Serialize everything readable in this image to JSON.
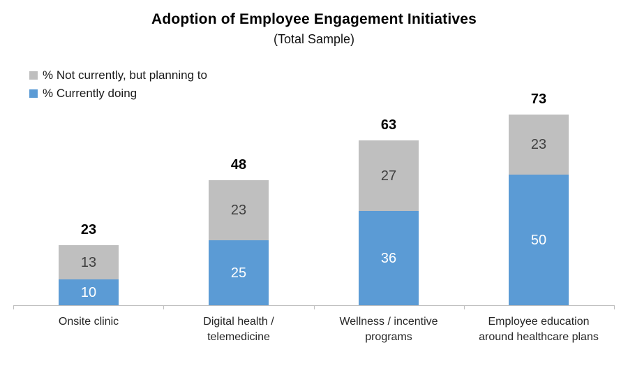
{
  "title": "Adoption of Employee Engagement Initiatives",
  "subtitle": "(Total Sample)",
  "legend": [
    {
      "label": "% Not currently, but planning to",
      "color": "#BFBFBF"
    },
    {
      "label": "% Currently doing",
      "color": "#5B9BD5"
    }
  ],
  "colors": {
    "blue": "#5B9BD5",
    "gray": "#BFBFBF",
    "axis": "#BFBFBF",
    "segment_label_on_blue": "#FFFFFF",
    "segment_label_on_gray": "#404040"
  },
  "chart_data": {
    "type": "bar",
    "stacked": true,
    "title": "Adoption of Employee Engagement Initiatives",
    "subtitle": "(Total Sample)",
    "categories": [
      "Onsite clinic",
      "Digital health / telemedicine",
      "Wellness / incentive programs",
      "Employee education around healthcare plans"
    ],
    "category_label_lines": [
      [
        "Onsite clinic"
      ],
      [
        "Digital health /",
        "telemedicine"
      ],
      [
        "Wellness / incentive",
        "programs"
      ],
      [
        "Employee education",
        "around healthcare plans"
      ]
    ],
    "series": [
      {
        "name": "% Currently doing",
        "color": "#5B9BD5",
        "label_color": "#FFFFFF",
        "values": [
          10,
          25,
          36,
          50
        ]
      },
      {
        "name": "% Not currently, but planning to",
        "color": "#BFBFBF",
        "label_color": "#404040",
        "values": [
          13,
          23,
          27,
          23
        ]
      }
    ],
    "totals": [
      23,
      48,
      63,
      73
    ],
    "ylim": [
      0,
      78
    ],
    "grid": false,
    "legend_position": "top-left",
    "value_labels": "inside-center",
    "total_labels": "above-bar"
  }
}
